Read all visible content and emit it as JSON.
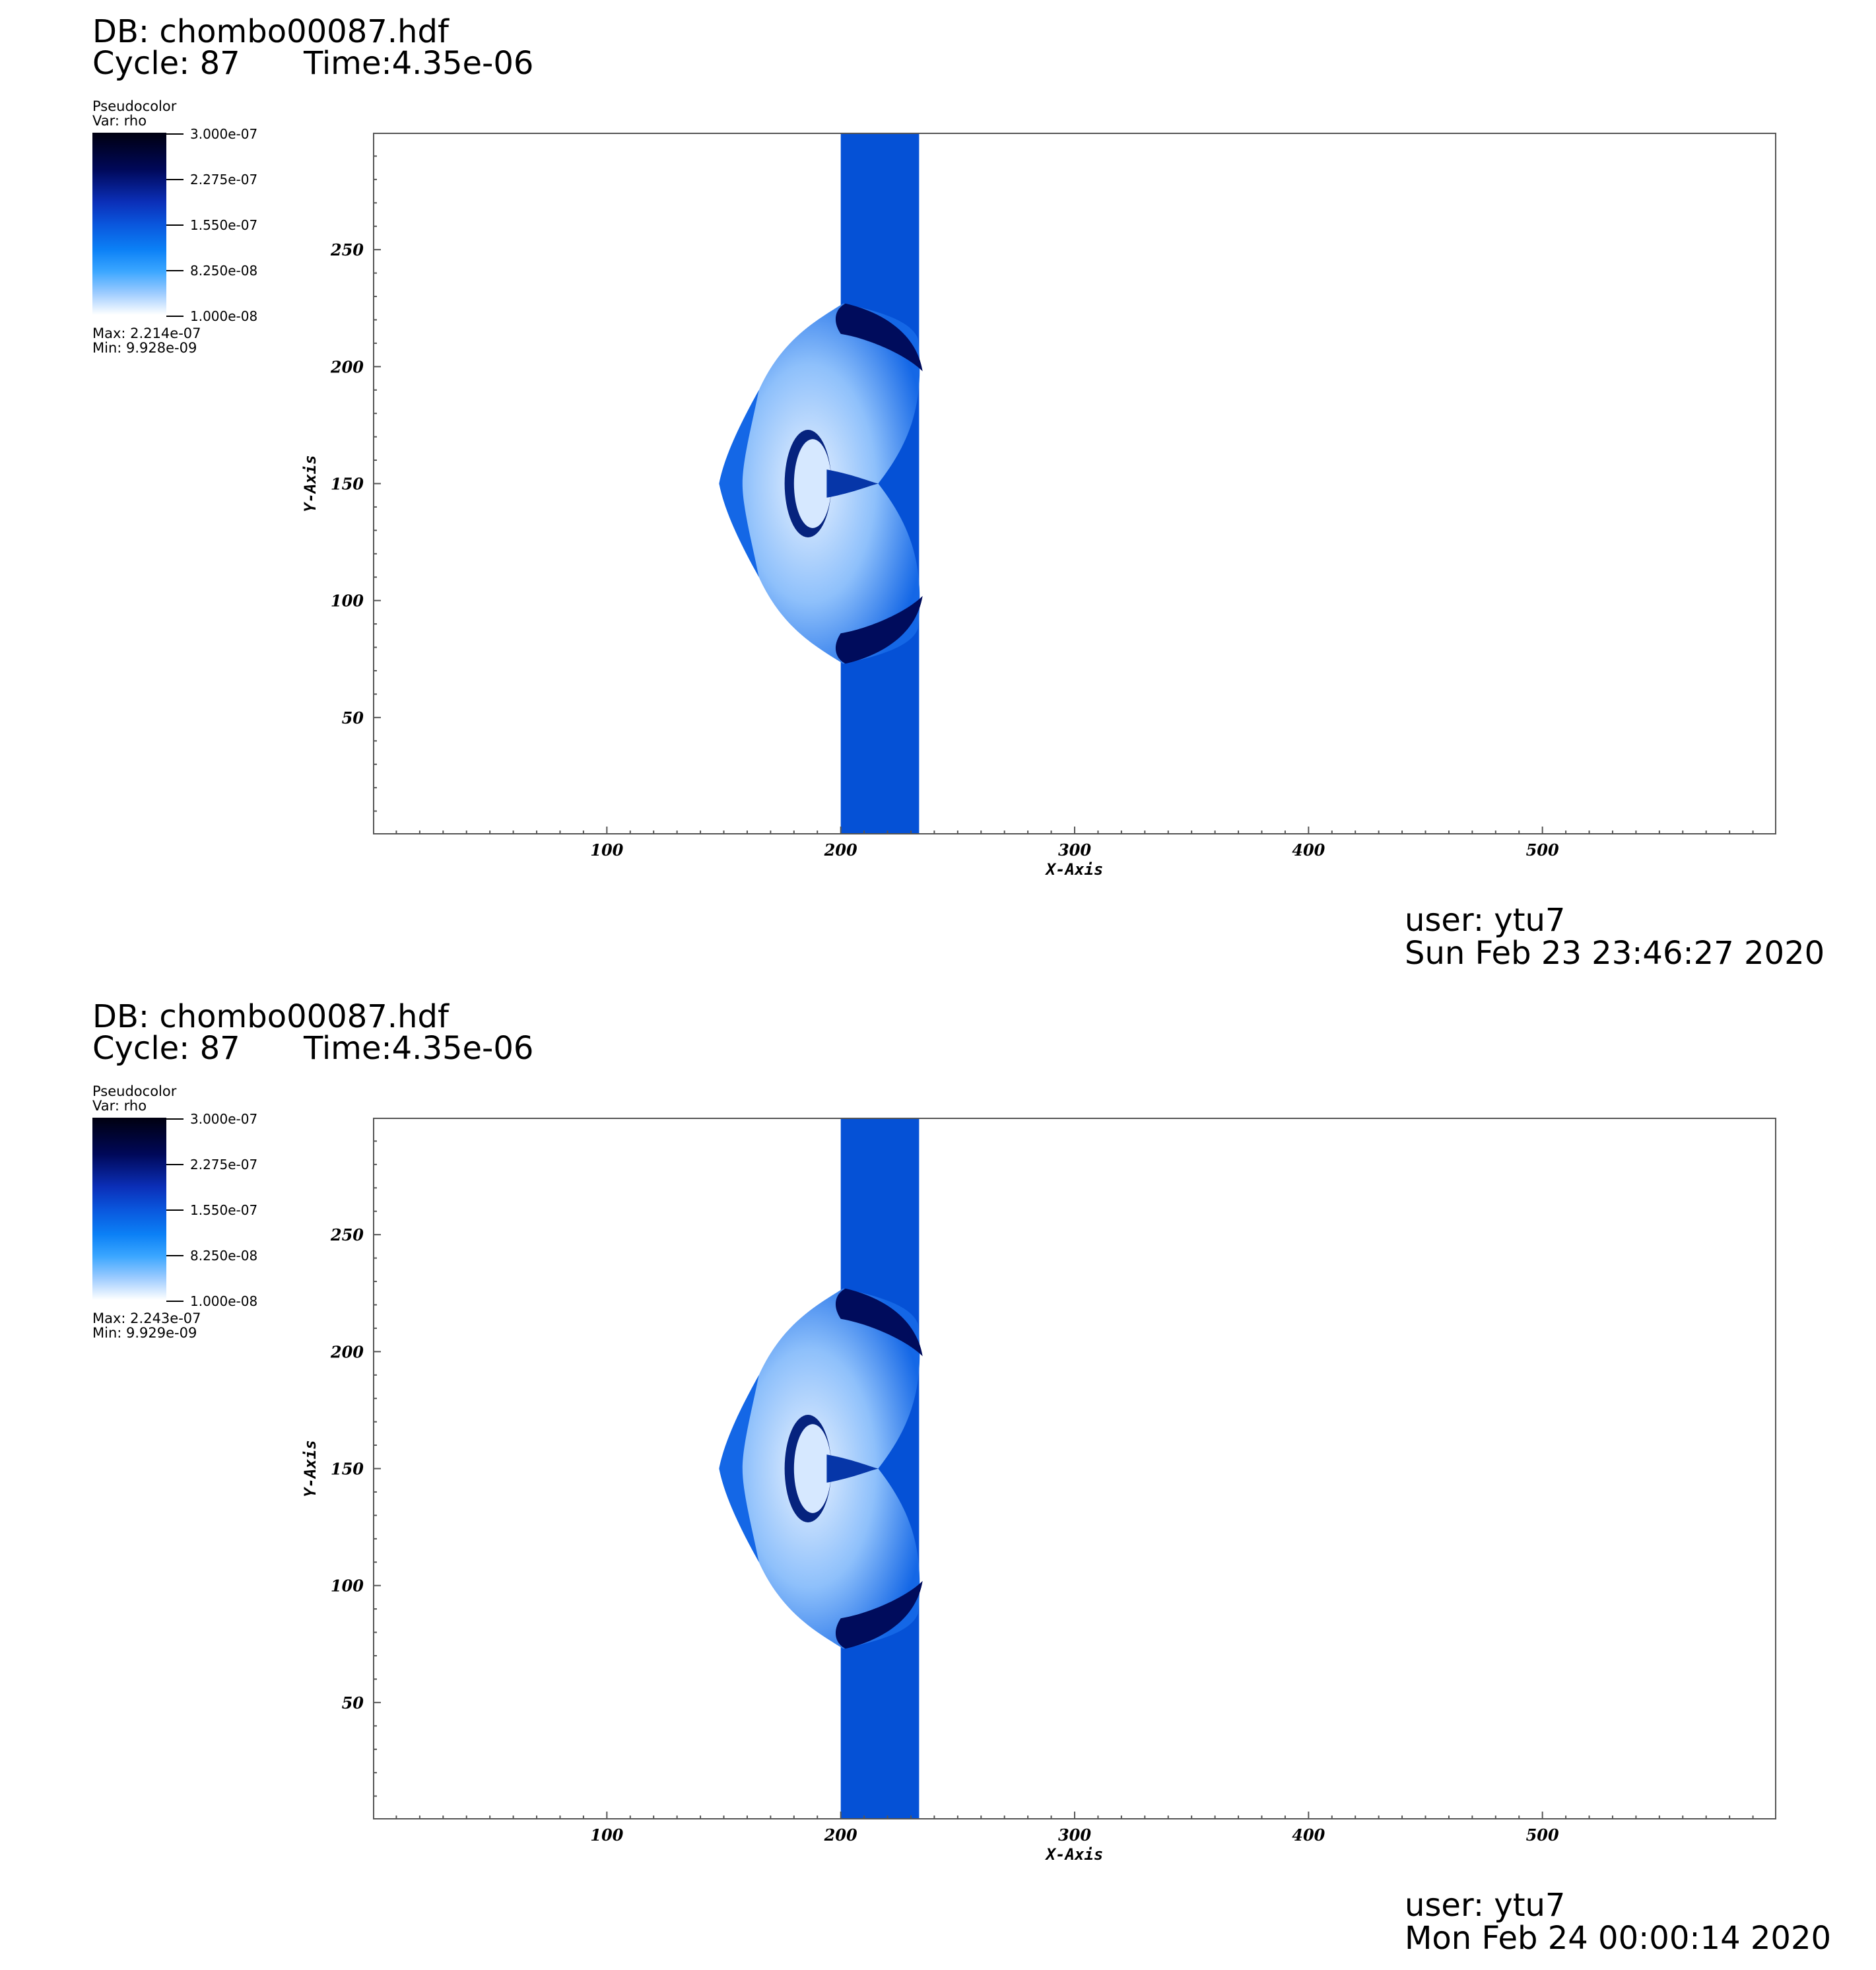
{
  "panels": [
    {
      "db": "DB: chombo00087.hdf",
      "cycle": "Cycle: 87",
      "time": "Time:4.35e-06",
      "legend": {
        "title": "Pseudocolor",
        "var": "Var: rho",
        "ticks": [
          "3.000e-07",
          "2.275e-07",
          "1.550e-07",
          "8.250e-08",
          "1.000e-08"
        ],
        "max": "Max:  2.214e-07",
        "min": "Min:  9.928e-09"
      },
      "user": "user: ytu7",
      "date": "Sun Feb 23 23:46:27 2020"
    },
    {
      "db": "DB: chombo00087.hdf",
      "cycle": "Cycle: 87",
      "time": "Time:4.35e-06",
      "legend": {
        "title": "Pseudocolor",
        "var": "Var: rho",
        "ticks": [
          "3.000e-07",
          "2.275e-07",
          "1.550e-07",
          "8.250e-08",
          "1.000e-08"
        ],
        "max": "Max:  2.243e-07",
        "min": "Min:  9.929e-09"
      },
      "user": "user: ytu7",
      "date": "Mon Feb 24 00:00:14 2020"
    }
  ],
  "chart_data": [
    {
      "type": "heatmap",
      "variable": "rho",
      "xlabel": "X-Axis",
      "ylabel": "Y-Axis",
      "xlim": [
        0,
        600
      ],
      "ylim": [
        0,
        300
      ],
      "xticks": [
        100,
        200,
        300,
        400,
        500
      ],
      "yticks": [
        50,
        100,
        150,
        200,
        250
      ],
      "colorbar_range": [
        1e-08,
        3e-07
      ],
      "colors": {
        "band": "#0551d6",
        "dark": "#000c5c",
        "mid": "#1467e6",
        "light": "#8ec0fb"
      }
    },
    {
      "type": "heatmap",
      "variable": "rho",
      "xlabel": "X-Axis",
      "ylabel": "Y-Axis",
      "xlim": [
        0,
        600
      ],
      "ylim": [
        0,
        300
      ],
      "xticks": [
        100,
        200,
        300,
        400,
        500
      ],
      "yticks": [
        50,
        100,
        150,
        200,
        250
      ],
      "colorbar_range": [
        1e-08,
        3e-07
      ],
      "colors": {
        "band": "#0551d6",
        "dark": "#000c5c",
        "mid": "#1467e6",
        "light": "#8ec0fb"
      }
    }
  ]
}
